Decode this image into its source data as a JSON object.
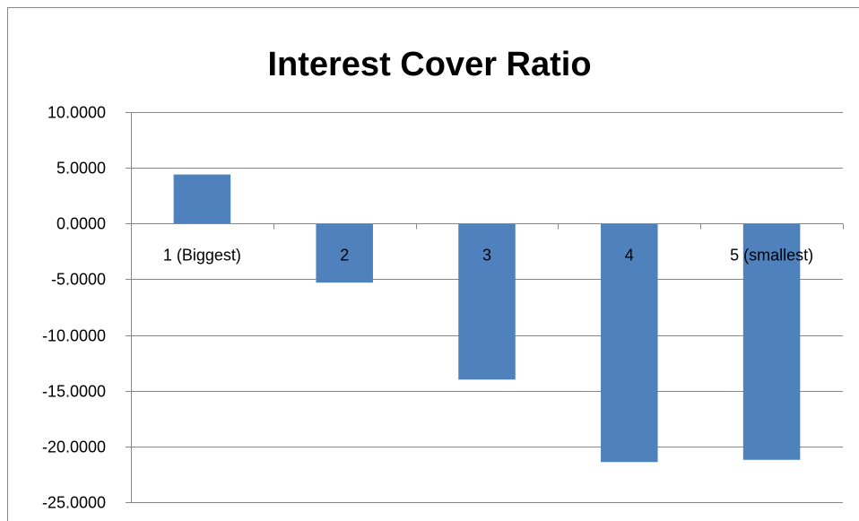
{
  "chart_data": {
    "type": "bar",
    "title": "Interest Cover Ratio",
    "xlabel": "",
    "ylabel": "",
    "categories": [
      "1 (Biggest)",
      "2",
      "3",
      "4",
      "5 (smallest)"
    ],
    "values": [
      4.4,
      -5.3,
      -14.0,
      -21.4,
      -21.2
    ],
    "ylim": [
      -25,
      10
    ],
    "yticks": [
      10,
      5,
      0,
      -5,
      -10,
      -15,
      -20,
      -25
    ],
    "ytick_labels": [
      "10.0000",
      "5.0000",
      "0.0000",
      "-5.0000",
      "-10.0000",
      "-15.0000",
      "-20.0000",
      "-25.0000"
    ],
    "grid": true,
    "legend": "none",
    "colors": {
      "bar": "#4f81bd",
      "grid": "#868686",
      "frame": "#898989"
    }
  }
}
